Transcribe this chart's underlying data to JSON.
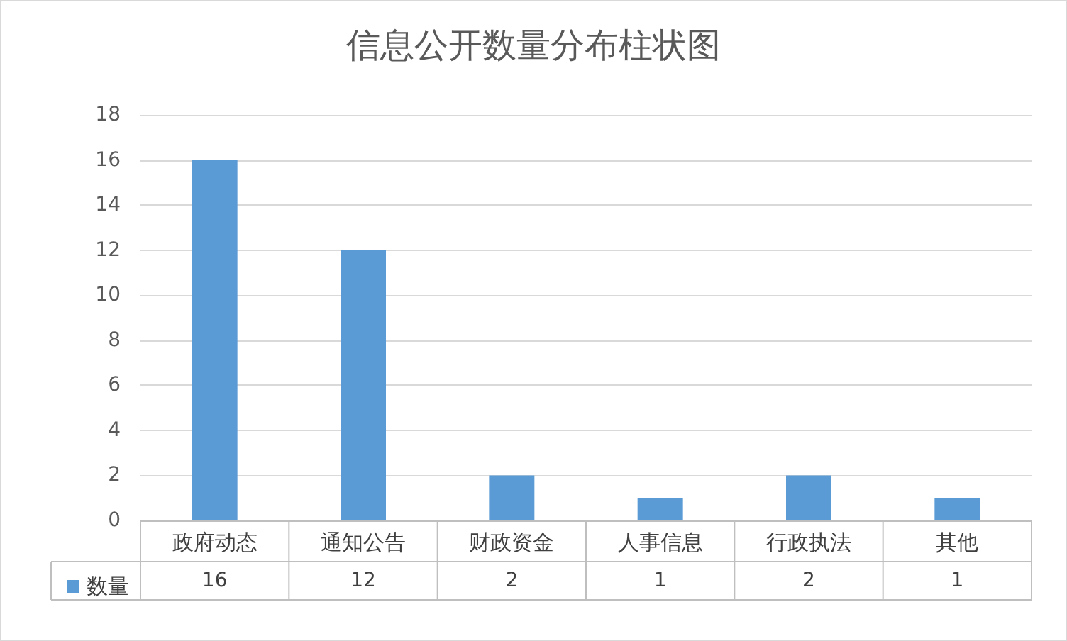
{
  "chart_data": {
    "type": "bar",
    "title": "信息公开数量分布柱状图",
    "categories": [
      "政府动态",
      "通知公告",
      "财政资金",
      "人事信息",
      "行政执法",
      "其他"
    ],
    "series": [
      {
        "name": "数量",
        "color": "#5b9bd5",
        "values": [
          16,
          12,
          2,
          1,
          2,
          1
        ]
      }
    ],
    "ylim": [
      0,
      18
    ],
    "yticks": [
      0,
      2,
      4,
      6,
      8,
      10,
      12,
      14,
      16,
      18
    ],
    "grid": "y",
    "legend": "bottom",
    "data_labels": true
  }
}
